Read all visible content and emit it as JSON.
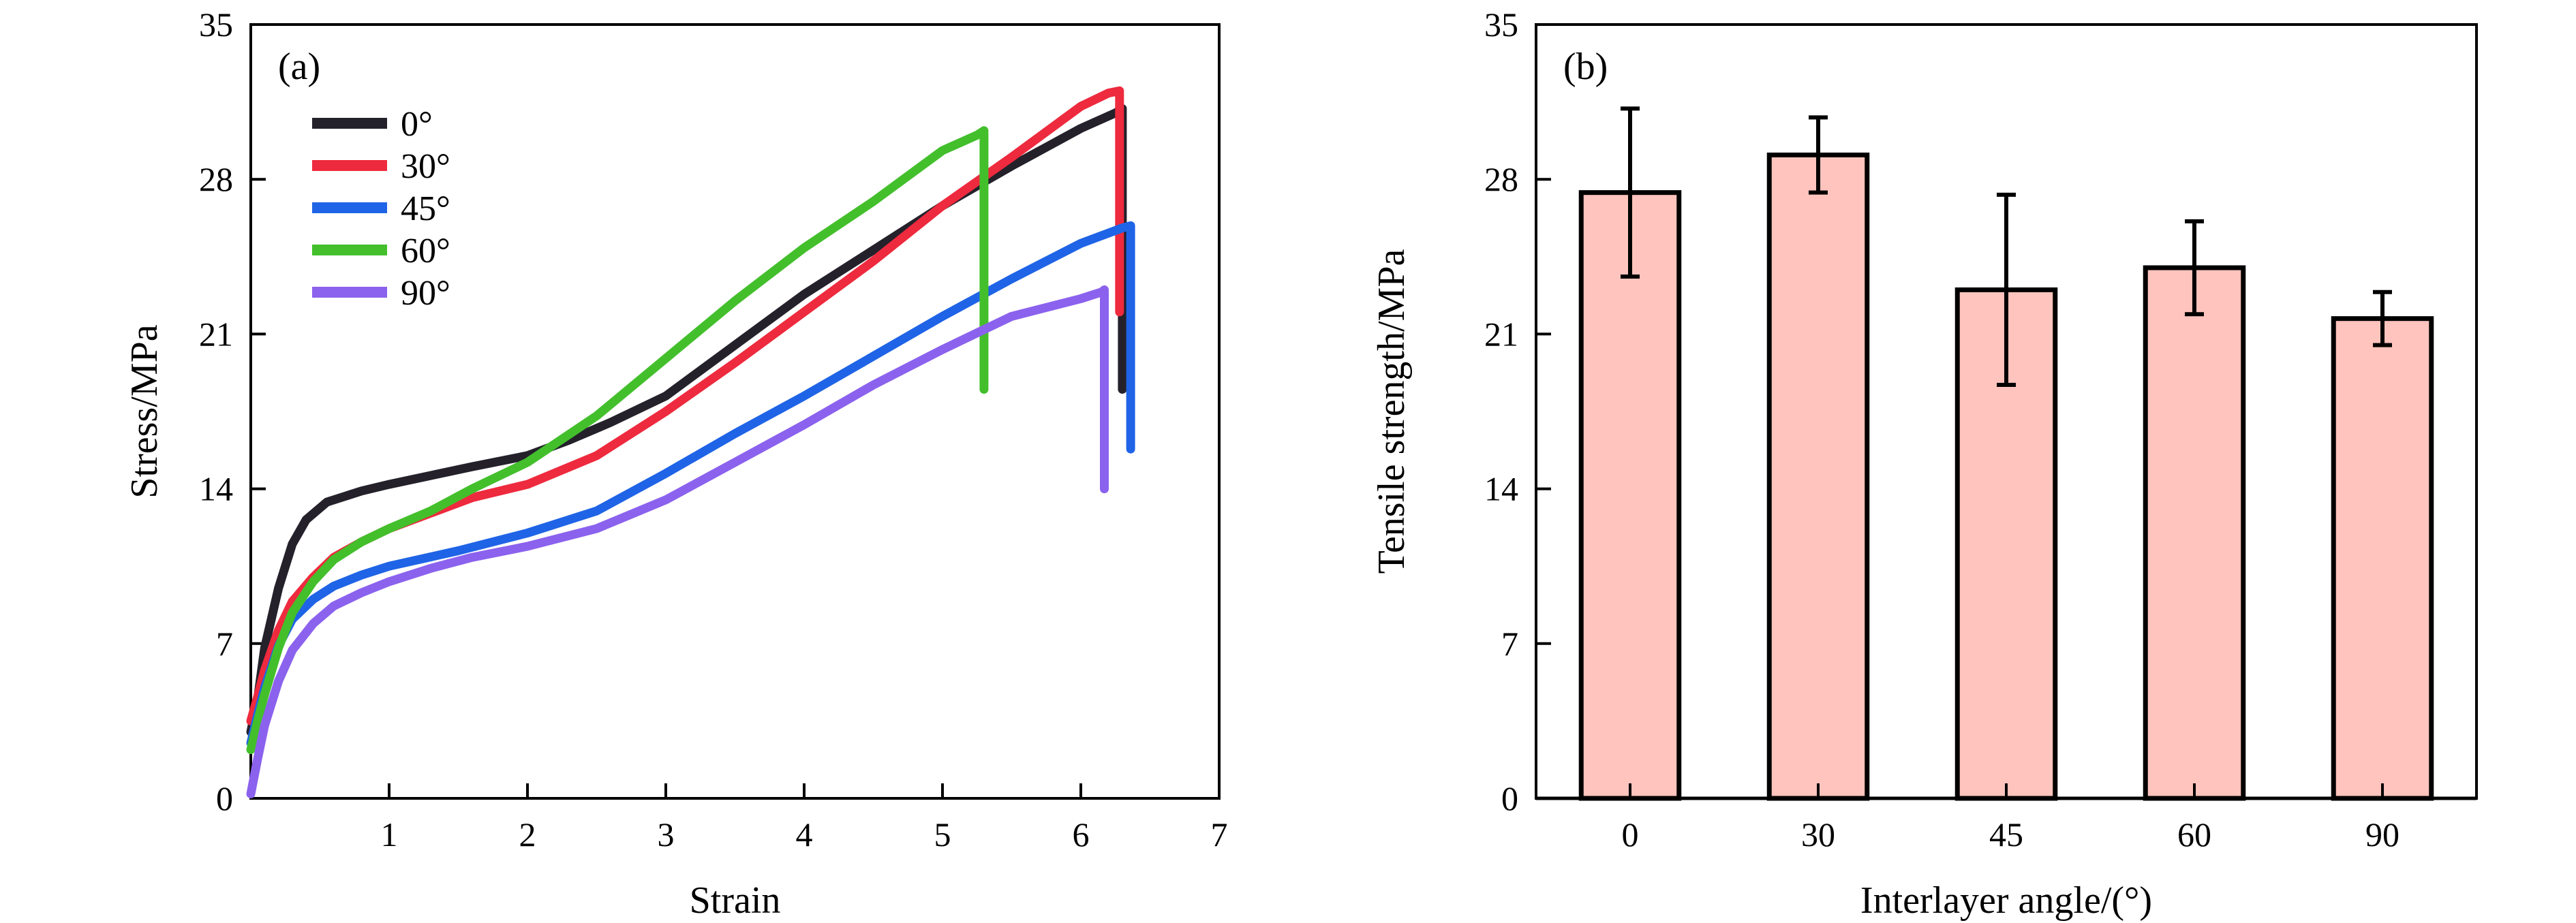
{
  "chart_data": [
    {
      "type": "line",
      "panel_label": "(a)",
      "title": "",
      "xlabel": "Strain",
      "ylabel": "Stress/MPa",
      "xlim": [
        0,
        7
      ],
      "ylim": [
        0,
        35
      ],
      "xticks": [
        1,
        2,
        3,
        4,
        5,
        6,
        7
      ],
      "yticks": [
        0,
        7,
        14,
        21,
        28,
        35
      ],
      "legend_position": "top-left",
      "grid": false,
      "series": [
        {
          "name": "0°",
          "color": "#24212b",
          "x": [
            0.0,
            0.05,
            0.1,
            0.2,
            0.3,
            0.4,
            0.55,
            0.8,
            1.0,
            1.3,
            1.6,
            2.0,
            2.3,
            2.6,
            3.0,
            3.5,
            4.0,
            4.5,
            5.0,
            5.5,
            6.0,
            6.25,
            6.3,
            6.3
          ],
          "y": [
            3.0,
            4.5,
            6.8,
            9.5,
            11.5,
            12.6,
            13.4,
            13.9,
            14.2,
            14.6,
            15.0,
            15.5,
            16.2,
            17.0,
            18.2,
            20.5,
            22.8,
            24.8,
            26.8,
            28.6,
            30.3,
            31.0,
            31.2,
            18.5
          ]
        },
        {
          "name": "30°",
          "color": "#ee2a3e",
          "x": [
            0.0,
            0.05,
            0.1,
            0.2,
            0.3,
            0.45,
            0.6,
            0.8,
            1.0,
            1.3,
            1.6,
            2.0,
            2.5,
            3.0,
            3.5,
            4.0,
            4.5,
            5.0,
            5.5,
            6.0,
            6.2,
            6.28,
            6.28
          ],
          "y": [
            3.5,
            4.6,
            5.8,
            7.6,
            8.9,
            10.0,
            10.9,
            11.6,
            12.2,
            12.9,
            13.6,
            14.2,
            15.5,
            17.5,
            19.7,
            22.0,
            24.3,
            26.8,
            29.0,
            31.3,
            31.9,
            32.0,
            22.0
          ]
        },
        {
          "name": "45°",
          "color": "#1f64e6",
          "x": [
            0.0,
            0.05,
            0.1,
            0.2,
            0.3,
            0.45,
            0.6,
            0.8,
            1.0,
            1.5,
            2.0,
            2.5,
            3.0,
            3.5,
            4.0,
            4.5,
            5.0,
            5.5,
            6.0,
            6.3,
            6.36,
            6.36
          ],
          "y": [
            2.5,
            3.8,
            5.0,
            6.9,
            8.1,
            9.0,
            9.6,
            10.1,
            10.5,
            11.2,
            12.0,
            13.0,
            14.7,
            16.5,
            18.2,
            20.0,
            21.8,
            23.5,
            25.1,
            25.8,
            25.9,
            15.8
          ]
        },
        {
          "name": "60°",
          "color": "#43bf2c",
          "x": [
            0.0,
            0.05,
            0.1,
            0.2,
            0.3,
            0.45,
            0.6,
            0.8,
            1.0,
            1.3,
            1.6,
            2.0,
            2.5,
            3.0,
            3.5,
            4.0,
            4.5,
            5.0,
            5.25,
            5.3,
            5.3
          ],
          "y": [
            2.2,
            3.5,
            4.7,
            6.8,
            8.4,
            9.8,
            10.8,
            11.6,
            12.2,
            13.0,
            14.0,
            15.2,
            17.3,
            19.9,
            22.5,
            24.9,
            27.0,
            29.3,
            30.0,
            30.2,
            18.5
          ]
        },
        {
          "name": "90°",
          "color": "#8b62ee",
          "x": [
            0.0,
            0.05,
            0.1,
            0.2,
            0.3,
            0.45,
            0.6,
            0.8,
            1.0,
            1.3,
            1.6,
            2.0,
            2.5,
            3.0,
            3.5,
            4.0,
            4.5,
            5.0,
            5.5,
            6.0,
            6.15,
            6.17,
            6.17
          ],
          "y": [
            0.2,
            1.8,
            3.3,
            5.3,
            6.7,
            7.9,
            8.7,
            9.3,
            9.8,
            10.4,
            10.9,
            11.4,
            12.2,
            13.5,
            15.2,
            16.9,
            18.7,
            20.3,
            21.8,
            22.6,
            22.9,
            23.0,
            14.0
          ]
        }
      ]
    },
    {
      "type": "bar",
      "panel_label": "(b)",
      "title": "",
      "xlabel": "Interlayer angle/(°)",
      "ylabel": "Tensile strength/MPa",
      "ylim": [
        0,
        35
      ],
      "yticks": [
        0,
        7,
        14,
        21,
        28,
        35
      ],
      "grid": false,
      "bar_color": "#ffc4bd",
      "categories": [
        "0",
        "30",
        "45",
        "60",
        "90"
      ],
      "values": [
        27.4,
        29.1,
        23.0,
        24.0,
        21.7
      ],
      "error": [
        3.8,
        1.7,
        4.3,
        2.1,
        1.2
      ]
    }
  ]
}
